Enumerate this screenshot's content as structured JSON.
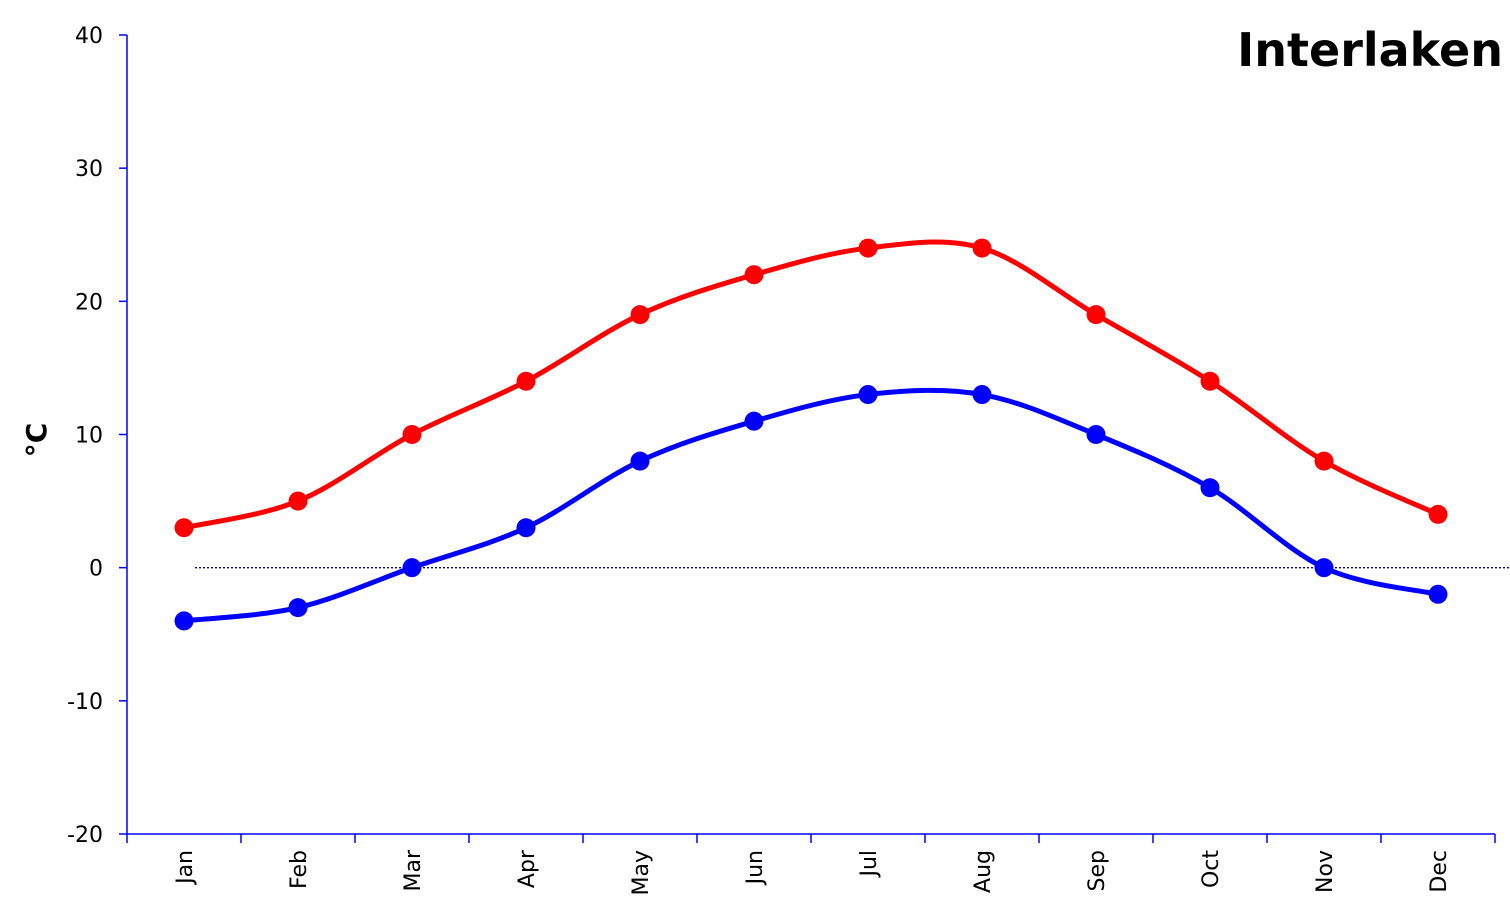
{
  "chart_data": {
    "type": "line",
    "title": "Interlaken",
    "xlabel": "",
    "ylabel": "°C",
    "categories": [
      "Jan",
      "Feb",
      "Mar",
      "Apr",
      "May",
      "Jun",
      "Jul",
      "Aug",
      "Sep",
      "Oct",
      "Nov",
      "Dec"
    ],
    "ylim": [
      -20,
      40
    ],
    "yticks": [
      "40",
      "30",
      "20",
      "10",
      "0",
      "-10",
      "-20"
    ],
    "grid": false,
    "zero_reference_line": true,
    "series": [
      {
        "color": "#ff0000",
        "values": [
          3,
          5,
          10,
          14,
          19,
          22,
          24,
          24,
          19,
          14,
          8,
          4
        ]
      },
      {
        "color": "#0000ff",
        "values": [
          -4,
          -3,
          0,
          3,
          8,
          11,
          13,
          13,
          10,
          6,
          0,
          -2
        ]
      }
    ],
    "axis_color": "#0000ff",
    "zero_line_color": "#000080"
  }
}
